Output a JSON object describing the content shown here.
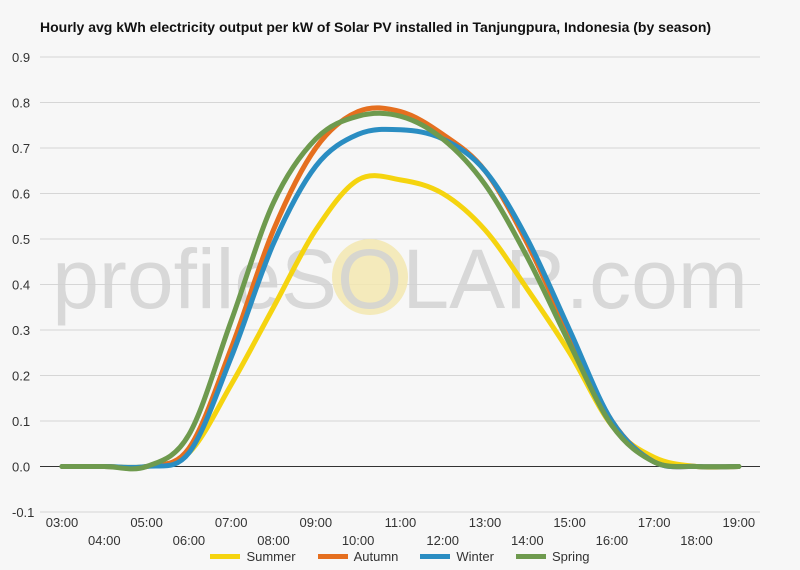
{
  "chart_data": {
    "type": "line",
    "title": "Hourly avg kWh electricity output per kW of Solar PV installed in Tanjungpura, Indonesia (by season)",
    "watermark": "profileSOLAR.com",
    "ylim": [
      -0.1,
      0.9
    ],
    "y_ticks": [
      "0.9",
      "0.8",
      "0.7",
      "0.6",
      "0.5",
      "0.4",
      "0.3",
      "0.2",
      "0.1",
      "0.0",
      "-0.1"
    ],
    "x": [
      "03:00",
      "04:00",
      "05:00",
      "06:00",
      "07:00",
      "08:00",
      "09:00",
      "10:00",
      "11:00",
      "12:00",
      "13:00",
      "14:00",
      "15:00",
      "16:00",
      "17:00",
      "18:00",
      "19:00"
    ],
    "grid": true,
    "legend_position": "bottom",
    "series": [
      {
        "name": "Summer",
        "color": "#f5d40f",
        "values": [
          0.0,
          0.0,
          0.0,
          0.03,
          0.18,
          0.35,
          0.52,
          0.63,
          0.63,
          0.6,
          0.52,
          0.39,
          0.25,
          0.09,
          0.02,
          0.0,
          0.0
        ]
      },
      {
        "name": "Autumn",
        "color": "#e56f1f",
        "values": [
          0.0,
          0.0,
          0.0,
          0.04,
          0.26,
          0.52,
          0.7,
          0.78,
          0.78,
          0.73,
          0.65,
          0.49,
          0.29,
          0.1,
          0.01,
          0.0,
          0.0
        ]
      },
      {
        "name": "Winter",
        "color": "#2a8dc2",
        "values": [
          0.0,
          0.0,
          0.0,
          0.03,
          0.24,
          0.49,
          0.66,
          0.73,
          0.74,
          0.72,
          0.65,
          0.5,
          0.3,
          0.1,
          0.01,
          0.0,
          0.0
        ]
      },
      {
        "name": "Spring",
        "color": "#6e9a4e",
        "values": [
          0.0,
          0.0,
          0.0,
          0.07,
          0.32,
          0.58,
          0.72,
          0.77,
          0.77,
          0.72,
          0.62,
          0.46,
          0.27,
          0.09,
          0.01,
          0.0,
          0.0
        ]
      }
    ]
  }
}
